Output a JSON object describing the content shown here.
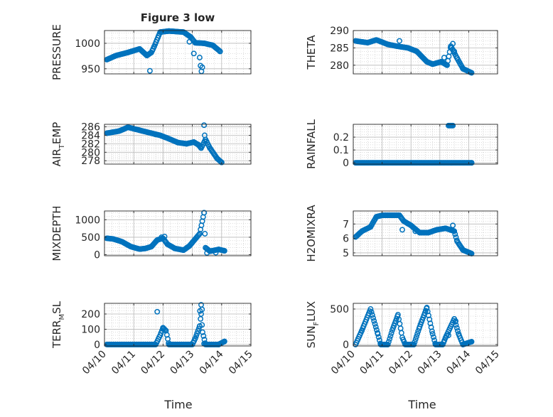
{
  "figure": {
    "title": "Figure 3 low",
    "xlabel": "Time"
  },
  "colors": {
    "marker": "#0072BD",
    "axis": "#262626",
    "grid": "#b8b8b8"
  },
  "chart_data": [
    {
      "type": "scatter",
      "title": "Figure 3 low",
      "ylabel": "PRESSURE",
      "ylabel_parts": [],
      "xlim": [
        0,
        5
      ],
      "ylim": [
        940,
        1025
      ],
      "yticks": [
        950,
        1000
      ],
      "grid": true,
      "anchors": [
        [
          0.08,
          968
        ],
        [
          0.4,
          976
        ],
        [
          0.8,
          982
        ],
        [
          1.2,
          989
        ],
        [
          1.45,
          976
        ],
        [
          1.6,
          982
        ],
        [
          1.7,
          994
        ],
        [
          1.9,
          1022
        ],
        [
          2.2,
          1024
        ],
        [
          2.7,
          1022
        ],
        [
          2.95,
          1012
        ],
        [
          3.1,
          1001
        ],
        [
          3.4,
          1000
        ],
        [
          3.7,
          996
        ],
        [
          3.95,
          984
        ]
      ],
      "extra_points": [
        [
          1.55,
          946
        ],
        [
          3.25,
          972
        ],
        [
          3.28,
          956
        ],
        [
          3.31,
          945
        ],
        [
          3.34,
          953
        ],
        [
          2.9,
          1003
        ],
        [
          3.05,
          980
        ]
      ],
      "step": 0.03
    },
    {
      "type": "scatter",
      "title": "",
      "ylabel": "THETA",
      "ylabel_parts": [],
      "xlim": [
        0,
        5
      ],
      "ylim": [
        277.5,
        290
      ],
      "yticks": [
        280,
        285,
        290
      ],
      "grid": true,
      "anchors": [
        [
          0.08,
          287
        ],
        [
          0.5,
          286.5
        ],
        [
          0.8,
          287.3
        ],
        [
          1.2,
          286
        ],
        [
          1.5,
          285.5
        ],
        [
          1.9,
          285
        ],
        [
          2.2,
          284
        ],
        [
          2.55,
          281
        ],
        [
          2.75,
          280.3
        ],
        [
          3.05,
          281
        ],
        [
          3.25,
          280
        ],
        [
          3.38,
          285.5
        ],
        [
          3.6,
          282
        ],
        [
          3.8,
          279
        ],
        [
          4.1,
          277.8
        ]
      ],
      "extra_points": [
        [
          1.6,
          287
        ],
        [
          3.45,
          286.2
        ],
        [
          3.5,
          284
        ],
        [
          3.15,
          282.2
        ]
      ],
      "step": 0.03
    },
    {
      "type": "scatter",
      "title": "",
      "ylabel": "",
      "ylabel_parts": [
        {
          "text": "AIR",
          "sub": false
        },
        {
          "text": "T",
          "sub": true
        },
        {
          "text": "EMP",
          "sub": false
        }
      ],
      "xlim": [
        0,
        5
      ],
      "ylim": [
        277.2,
        286.6
      ],
      "yticks": [
        278,
        280,
        282,
        284,
        286
      ],
      "grid": true,
      "anchors": [
        [
          0.08,
          284.5
        ],
        [
          0.5,
          285
        ],
        [
          0.8,
          285.9
        ],
        [
          1.2,
          285.2
        ],
        [
          1.6,
          284.5
        ],
        [
          1.9,
          284
        ],
        [
          2.2,
          283.2
        ],
        [
          2.5,
          282.3
        ],
        [
          2.8,
          282
        ],
        [
          3.05,
          282.4
        ],
        [
          3.2,
          281.8
        ],
        [
          3.3,
          281
        ],
        [
          3.45,
          283
        ],
        [
          3.6,
          281
        ],
        [
          3.85,
          278.5
        ],
        [
          4.0,
          277.6
        ]
      ],
      "extra_points": [
        [
          3.4,
          286.4
        ],
        [
          3.42,
          284
        ],
        [
          1.75,
          284.2
        ]
      ],
      "step": 0.03
    },
    {
      "type": "scatter",
      "title": "",
      "ylabel": "RAINFALL",
      "ylabel_parts": [],
      "xlim": [
        0,
        5
      ],
      "ylim": [
        -0.01,
        0.3
      ],
      "yticks": [
        0,
        0.1,
        0.2
      ],
      "grid": true,
      "anchors": [
        [
          0.08,
          0
        ],
        [
          4.1,
          0
        ]
      ],
      "extra_points": [
        [
          3.3,
          0.29
        ],
        [
          3.33,
          0.29
        ],
        [
          3.36,
          0.29
        ],
        [
          3.39,
          0.29
        ],
        [
          3.42,
          0.29
        ],
        [
          3.45,
          0.29
        ]
      ],
      "step": 0.03
    },
    {
      "type": "scatter",
      "title": "",
      "ylabel": "MIXDEPTH",
      "ylabel_parts": [],
      "xlim": [
        0,
        5
      ],
      "ylim": [
        -30,
        1250
      ],
      "yticks": [
        0,
        500,
        1000
      ],
      "grid": true,
      "anchors": [
        [
          0.08,
          470
        ],
        [
          0.3,
          450
        ],
        [
          0.6,
          370
        ],
        [
          0.9,
          230
        ],
        [
          1.2,
          160
        ],
        [
          1.4,
          180
        ],
        [
          1.6,
          230
        ],
        [
          1.8,
          420
        ],
        [
          2.0,
          470
        ],
        [
          2.15,
          300
        ],
        [
          2.4,
          180
        ],
        [
          2.7,
          130
        ],
        [
          2.9,
          250
        ],
        [
          3.1,
          450
        ],
        [
          3.25,
          600
        ],
        [
          3.4,
          1200
        ],
        [
          3.45,
          200
        ],
        [
          3.6,
          100
        ],
        [
          3.9,
          150
        ],
        [
          4.1,
          110
        ]
      ],
      "extra_points": [
        [
          1.95,
          500
        ],
        [
          2.05,
          520
        ],
        [
          3.5,
          50
        ],
        [
          3.8,
          60
        ]
      ],
      "step": 0.03
    },
    {
      "type": "scatter",
      "title": "",
      "ylabel": "H2OMIXRA",
      "ylabel_parts": [],
      "xlim": [
        0,
        5
      ],
      "ylim": [
        4.8,
        7.9
      ],
      "yticks": [
        5,
        6,
        7
      ],
      "grid": true,
      "anchors": [
        [
          0.08,
          6.1
        ],
        [
          0.3,
          6.5
        ],
        [
          0.6,
          6.8
        ],
        [
          0.8,
          7.5
        ],
        [
          1.0,
          7.6
        ],
        [
          1.3,
          7.6
        ],
        [
          1.6,
          7.6
        ],
        [
          1.75,
          7.2
        ],
        [
          2.0,
          6.9
        ],
        [
          2.3,
          6.4
        ],
        [
          2.6,
          6.4
        ],
        [
          2.9,
          6.6
        ],
        [
          3.2,
          6.7
        ],
        [
          3.5,
          6.5
        ],
        [
          3.6,
          5.8
        ],
        [
          3.8,
          5.2
        ],
        [
          4.1,
          4.95
        ]
      ],
      "extra_points": [
        [
          1.7,
          6.6
        ],
        [
          3.45,
          6.9
        ],
        [
          2.15,
          6.5
        ]
      ],
      "step": 0.03
    },
    {
      "type": "scatter",
      "title": "",
      "ylabel": "",
      "ylabel_parts": [
        {
          "text": "TERR",
          "sub": false
        },
        {
          "text": "M",
          "sub": true
        },
        {
          "text": "SL",
          "sub": false
        }
      ],
      "xlim": [
        0,
        5
      ],
      "ylim": [
        -10,
        270
      ],
      "yticks": [
        0,
        100,
        200
      ],
      "grid": true,
      "anchors": [
        [
          0.08,
          0
        ],
        [
          1.75,
          0
        ],
        [
          1.9,
          60
        ],
        [
          2.0,
          110
        ],
        [
          2.1,
          90
        ],
        [
          2.2,
          0
        ],
        [
          3.0,
          0
        ],
        [
          3.1,
          40
        ],
        [
          3.25,
          120
        ],
        [
          3.3,
          200
        ],
        [
          3.35,
          80
        ],
        [
          3.45,
          0
        ],
        [
          3.9,
          0
        ],
        [
          4.1,
          20
        ]
      ],
      "extra_points": [
        [
          1.8,
          215
        ],
        [
          3.3,
          260
        ],
        [
          3.33,
          230
        ],
        [
          3.26,
          220
        ],
        [
          3.4,
          5
        ]
      ],
      "step": 0.03
    },
    {
      "type": "scatter",
      "title": "",
      "ylabel": "",
      "ylabel_parts": [
        {
          "text": "SUN",
          "sub": false
        },
        {
          "text": "F",
          "sub": true
        },
        {
          "text": "LUX",
          "sub": false
        }
      ],
      "xlim": [
        0,
        5
      ],
      "ylim": [
        -20,
        580
      ],
      "yticks": [
        0,
        500
      ],
      "grid": true,
      "anchors": [
        [
          0.08,
          0
        ],
        [
          0.3,
          200
        ],
        [
          0.6,
          500
        ],
        [
          0.85,
          150
        ],
        [
          0.95,
          0
        ],
        [
          1.2,
          0
        ],
        [
          1.35,
          200
        ],
        [
          1.55,
          420
        ],
        [
          1.7,
          100
        ],
        [
          1.8,
          0
        ],
        [
          2.1,
          0
        ],
        [
          2.3,
          250
        ],
        [
          2.55,
          520
        ],
        [
          2.75,
          150
        ],
        [
          2.85,
          0
        ],
        [
          3.1,
          0
        ],
        [
          3.2,
          100
        ],
        [
          3.5,
          360
        ],
        [
          3.65,
          150
        ],
        [
          3.8,
          0
        ],
        [
          4.1,
          40
        ]
      ],
      "extra_points": [
        [
          3.3,
          130
        ],
        [
          3.55,
          330
        ]
      ],
      "step": 0.03
    }
  ],
  "xaxis": {
    "ticks": [
      0,
      1,
      2,
      3,
      4,
      5
    ],
    "ticklabels": [
      "04/10",
      "04/11",
      "04/12",
      "04/13",
      "04/14",
      "04/15"
    ]
  }
}
